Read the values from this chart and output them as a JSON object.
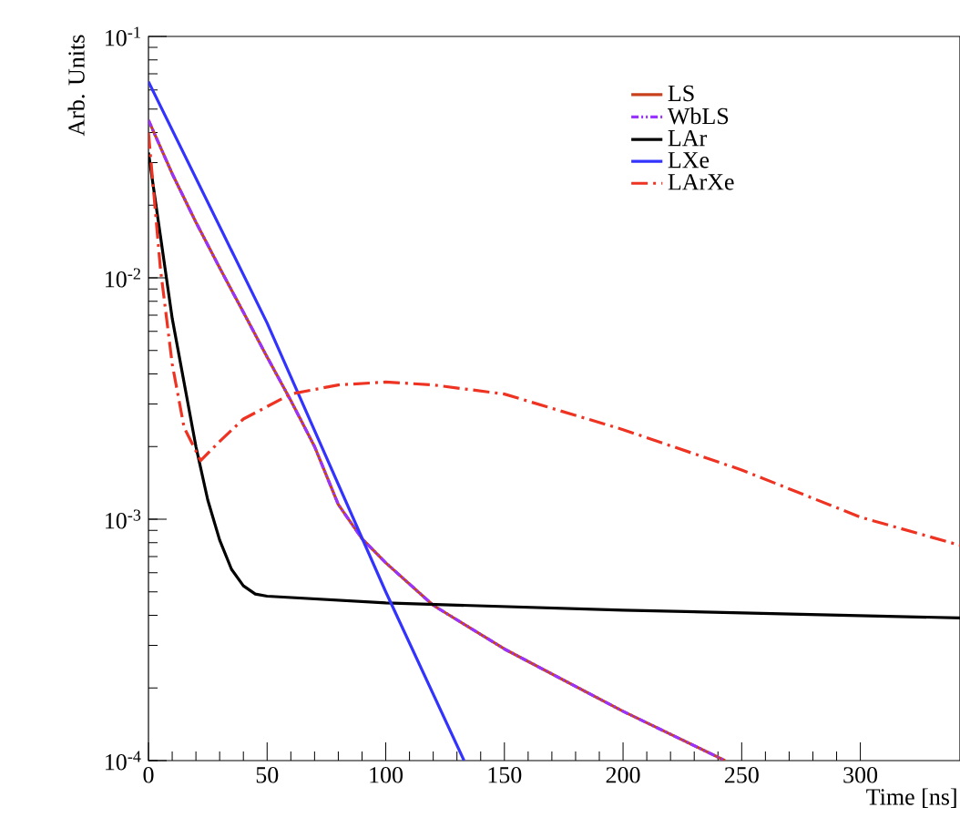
{
  "chart_data": {
    "type": "line",
    "xlabel": "Time [ns]",
    "ylabel": "Arb. Units",
    "log": "y",
    "xlim": [
      0,
      342
    ],
    "ylim": [
      0.0001,
      0.1
    ],
    "xticks": [
      0,
      50,
      100,
      150,
      200,
      250,
      300
    ],
    "yticks": [
      {
        "value": 0.0001,
        "label": "10$^{-4}$"
      },
      {
        "value": 0.001,
        "label": "10$^{-3}$"
      },
      {
        "value": 0.01,
        "label": "10$^{-2}$"
      },
      {
        "value": 0.1,
        "label": "10$^{-1}$"
      }
    ],
    "grid": false,
    "legend": "top right",
    "marker": "none",
    "series": [
      {
        "name": "LS",
        "color": "#c8401c",
        "line_style": "solid",
        "x": [
          0,
          10,
          20,
          30,
          40,
          50,
          60,
          70,
          80,
          90,
          100,
          120,
          150,
          200,
          243
        ],
        "values": [
          0.045,
          0.027,
          0.017,
          0.011,
          0.0072,
          0.0047,
          0.0031,
          0.002,
          0.00115,
          0.00083,
          0.00066,
          0.00044,
          0.00029,
          0.00016,
          0.0001
        ]
      },
      {
        "name": "WbLS",
        "color": "#9933ff",
        "line_style": "dotted",
        "x": [
          0,
          10,
          20,
          30,
          40,
          50,
          60,
          70,
          80,
          90,
          100,
          120,
          150,
          200,
          243
        ],
        "values": [
          0.045,
          0.027,
          0.017,
          0.011,
          0.0072,
          0.0047,
          0.0031,
          0.002,
          0.00115,
          0.00083,
          0.00066,
          0.00044,
          0.00029,
          0.00016,
          0.0001
        ]
      },
      {
        "name": "LAr",
        "color": "#000000",
        "line_style": "solid",
        "x": [
          0,
          5,
          10,
          20,
          25,
          30,
          35,
          40,
          45,
          50,
          100,
          200,
          342
        ],
        "values": [
          0.033,
          0.015,
          0.0068,
          0.002,
          0.0012,
          0.00082,
          0.00062,
          0.00053,
          0.00049,
          0.00048,
          0.00045,
          0.00042,
          0.00039
        ]
      },
      {
        "name": "LXe",
        "color": "#3333ff",
        "line_style": "solid",
        "x": [
          0,
          50,
          100,
          133
        ],
        "values": [
          0.065,
          0.0065,
          0.0005,
          0.0001
        ]
      },
      {
        "name": "LArXe",
        "color": "#ee3322",
        "line_style": "dashed",
        "x": [
          0,
          5,
          10,
          15,
          22,
          30,
          40,
          60,
          80,
          100,
          120,
          150,
          200,
          250,
          300,
          342
        ],
        "values": [
          0.04,
          0.011,
          0.0044,
          0.0024,
          0.00175,
          0.0021,
          0.0026,
          0.0033,
          0.0036,
          0.0037,
          0.0036,
          0.0033,
          0.00235,
          0.0016,
          0.00102,
          0.00078
        ]
      }
    ]
  }
}
